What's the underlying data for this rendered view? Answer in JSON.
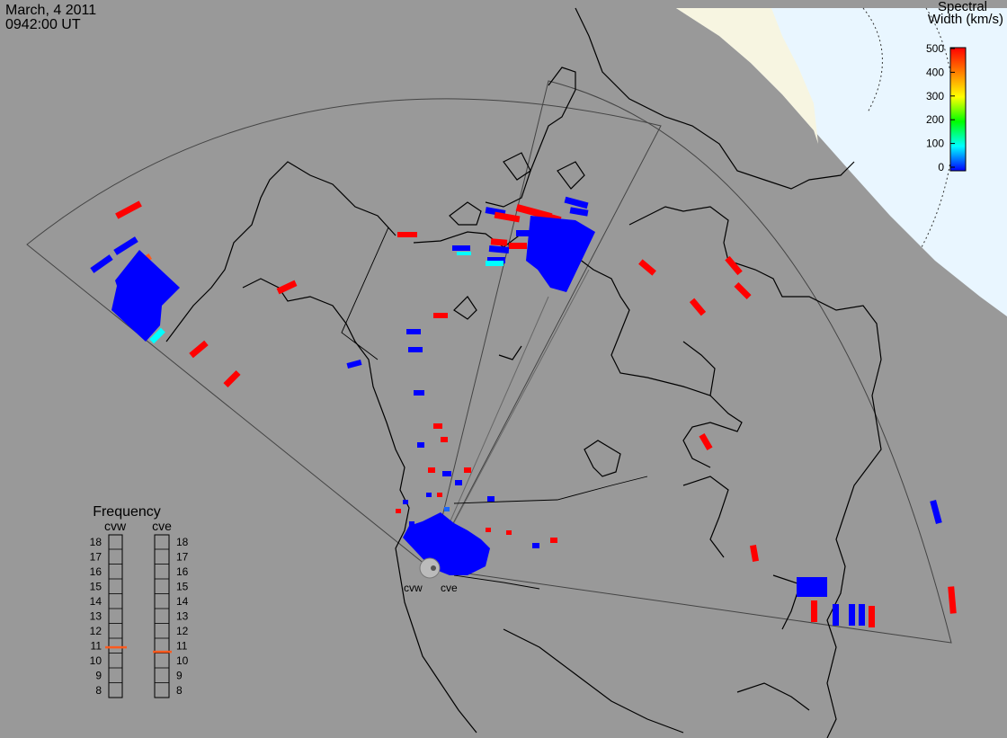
{
  "header": {
    "date": "March, 4 2011",
    "time": "0942:00 UT"
  },
  "colorbar": {
    "title_line1": "Spectral",
    "title_line2": "Width (km/s)",
    "ticks": [
      "500",
      "400",
      "300",
      "200",
      "100",
      "0"
    ],
    "range": [
      0,
      500
    ],
    "colors": [
      "#0000ff",
      "#00ffff",
      "#00ff00",
      "#ffff00",
      "#ff7f00",
      "#ff0000"
    ]
  },
  "radars": {
    "west_label": "cvw",
    "east_label": "cve"
  },
  "frequency_panel": {
    "title": "Frequency",
    "col_left": "cvw",
    "col_right": "cve",
    "scale": [
      "18",
      "17",
      "16",
      "15",
      "14",
      "13",
      "12",
      "11",
      "10",
      "9",
      "8"
    ],
    "cvw_value": 10.9,
    "cve_value": 10.6,
    "marker_color": "#ff5a1e"
  },
  "map_colors": {
    "ocean_land": "#999999",
    "dayside_light": "#e9f6ff",
    "terminator_beige": "#f7f5e1",
    "fov_outline": "#444444",
    "coast": "#000000"
  }
}
